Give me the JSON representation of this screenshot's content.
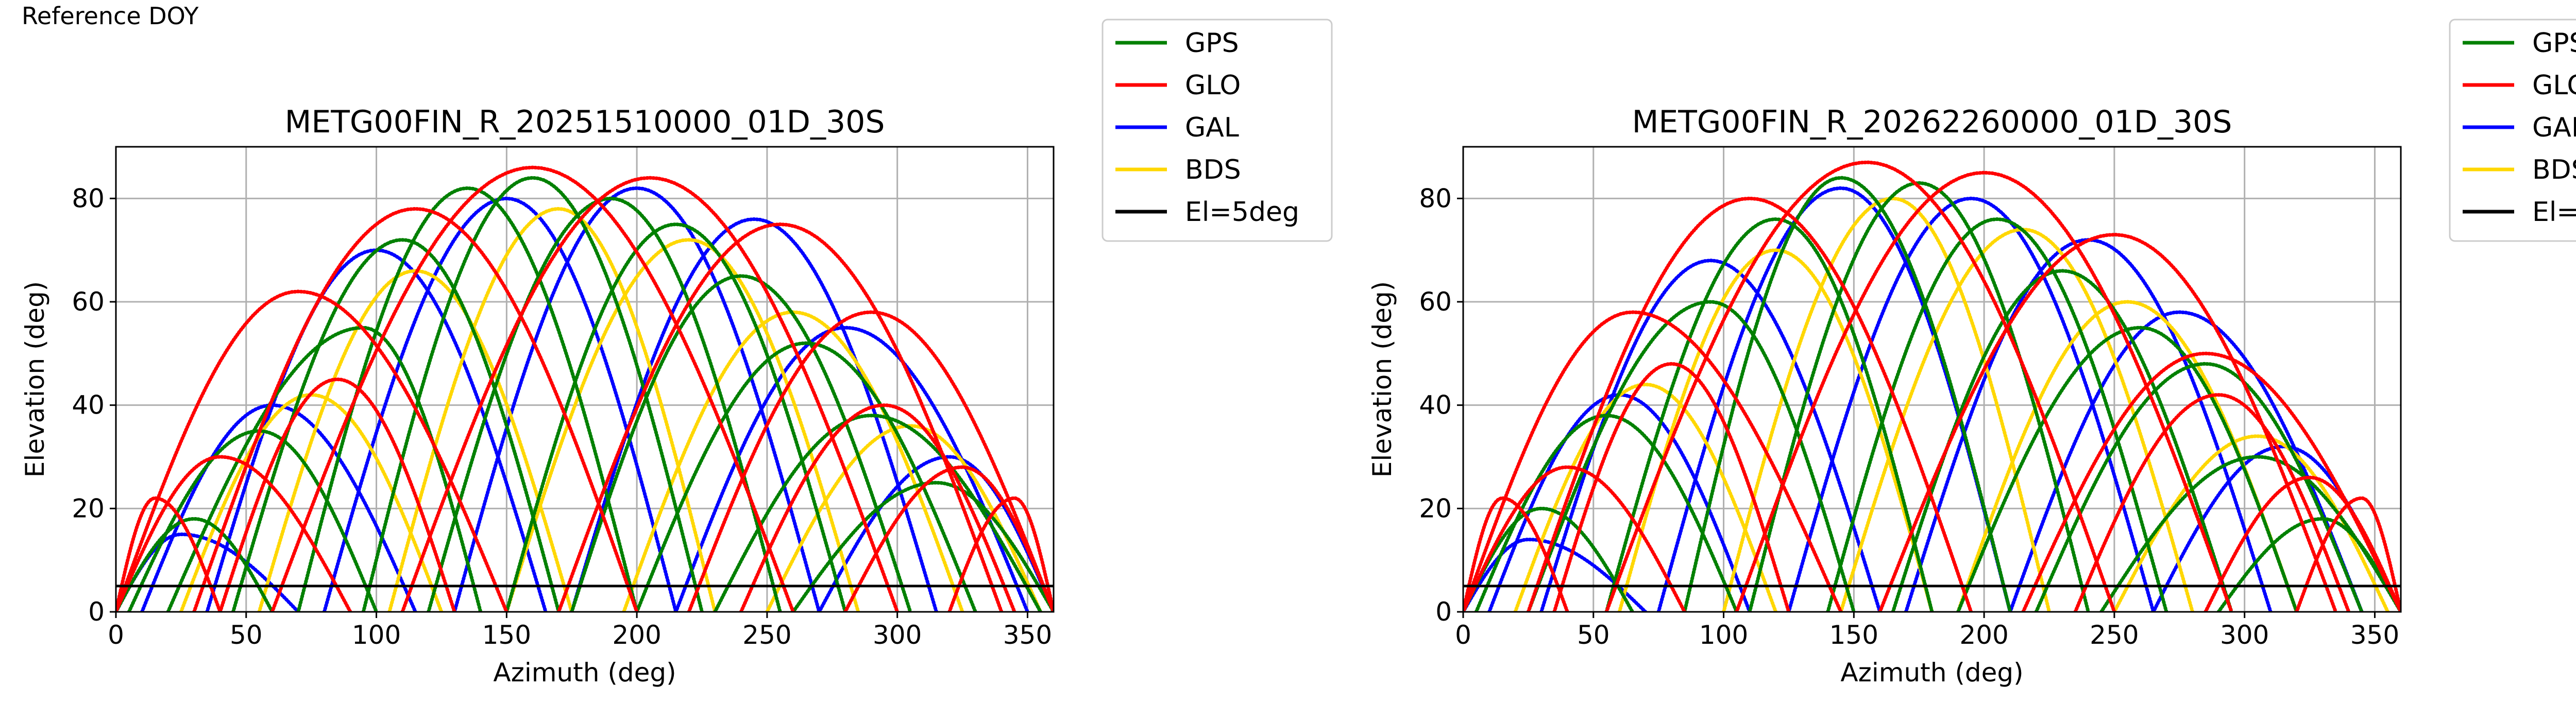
{
  "figure_label": "Reference DOY",
  "legend_items": [
    {
      "label": "GPS",
      "color": "#008000"
    },
    {
      "label": "GLO",
      "color": "#ff0000"
    },
    {
      "label": "GAL",
      "color": "#0000ff"
    },
    {
      "label": "BDS",
      "color": "#ffd700"
    },
    {
      "label": "El=5deg",
      "color": "#000000"
    }
  ],
  "chart_data": [
    {
      "type": "scatter",
      "title": "METG00FIN_R_20251510000_01D_30S",
      "xlabel": "Azimuth (deg)",
      "ylabel": "Elevation (deg)",
      "xlim": [
        0,
        360
      ],
      "ylim": [
        0,
        90
      ],
      "xticks": [
        0,
        50,
        100,
        150,
        200,
        250,
        300,
        350
      ],
      "yticks": [
        0,
        20,
        40,
        60,
        80
      ],
      "grid": true,
      "legend_position": "outside-right",
      "reference_line": {
        "name": "El=5deg",
        "y": 5
      },
      "series": [
        {
          "name": "GPS",
          "color": "#008000",
          "arcs": [
            {
              "az_start": 20,
              "az_end": 140,
              "peak_az": 95,
              "peak_el": 55
            },
            {
              "az_start": 45,
              "az_end": 170,
              "peak_az": 110,
              "peak_el": 72
            },
            {
              "az_start": 70,
              "az_end": 200,
              "peak_az": 135,
              "peak_el": 82
            },
            {
              "az_start": 95,
              "az_end": 225,
              "peak_az": 160,
              "peak_el": 84
            },
            {
              "az_start": 120,
              "az_end": 255,
              "peak_az": 190,
              "peak_el": 80
            },
            {
              "az_start": 150,
              "az_end": 280,
              "peak_az": 215,
              "peak_el": 75
            },
            {
              "az_start": 175,
              "az_end": 305,
              "peak_az": 240,
              "peak_el": 65
            },
            {
              "az_start": 200,
              "az_end": 330,
              "peak_az": 265,
              "peak_el": 52
            },
            {
              "az_start": 230,
              "az_end": 355,
              "peak_az": 290,
              "peak_el": 38
            },
            {
              "az_start": 5,
              "az_end": 100,
              "peak_az": 55,
              "peak_el": 35
            },
            {
              "az_start": 260,
              "az_end": 360,
              "peak_az": 315,
              "peak_el": 25
            },
            {
              "az_start": 0,
              "az_end": 60,
              "peak_az": 30,
              "peak_el": 18
            }
          ]
        },
        {
          "name": "GLO",
          "color": "#ff0000",
          "arcs": [
            {
              "az_start": 0,
              "az_end": 150,
              "peak_az": 70,
              "peak_el": 62
            },
            {
              "az_start": 30,
              "az_end": 200,
              "peak_az": 115,
              "peak_el": 78
            },
            {
              "az_start": 60,
              "az_end": 260,
              "peak_az": 160,
              "peak_el": 86
            },
            {
              "az_start": 110,
              "az_end": 300,
              "peak_az": 205,
              "peak_el": 84
            },
            {
              "az_start": 170,
              "az_end": 340,
              "peak_az": 255,
              "peak_el": 75
            },
            {
              "az_start": 220,
              "az_end": 360,
              "peak_az": 290,
              "peak_el": 58
            },
            {
              "az_start": 0,
              "az_end": 90,
              "peak_az": 40,
              "peak_el": 30
            },
            {
              "az_start": 280,
              "az_end": 360,
              "peak_az": 325,
              "peak_el": 28
            },
            {
              "az_start": 0,
              "az_end": 40,
              "peak_az": 15,
              "peak_el": 22
            },
            {
              "az_start": 320,
              "az_end": 360,
              "peak_az": 345,
              "peak_el": 22
            },
            {
              "az_start": 40,
              "az_end": 130,
              "peak_az": 85,
              "peak_el": 45
            },
            {
              "az_start": 240,
              "az_end": 345,
              "peak_az": 295,
              "peak_el": 40
            }
          ]
        },
        {
          "name": "GAL",
          "color": "#0000ff",
          "arcs": [
            {
              "az_start": 35,
              "az_end": 165,
              "peak_az": 100,
              "peak_el": 70
            },
            {
              "az_start": 80,
              "az_end": 215,
              "peak_az": 150,
              "peak_el": 80
            },
            {
              "az_start": 130,
              "az_end": 270,
              "peak_az": 200,
              "peak_el": 82
            },
            {
              "az_start": 175,
              "az_end": 315,
              "peak_az": 245,
              "peak_el": 76
            },
            {
              "az_start": 215,
              "az_end": 350,
              "peak_az": 280,
              "peak_el": 55
            },
            {
              "az_start": 10,
              "az_end": 115,
              "peak_az": 60,
              "peak_el": 40
            },
            {
              "az_start": 270,
              "az_end": 360,
              "peak_az": 320,
              "peak_el": 30
            },
            {
              "az_start": 0,
              "az_end": 70,
              "peak_az": 25,
              "peak_el": 15
            }
          ]
        },
        {
          "name": "BDS",
          "color": "#ffd700",
          "arcs": [
            {
              "az_start": 55,
              "az_end": 175,
              "peak_az": 115,
              "peak_el": 66
            },
            {
              "az_start": 105,
              "az_end": 230,
              "peak_az": 170,
              "peak_el": 78
            },
            {
              "az_start": 150,
              "az_end": 285,
              "peak_az": 220,
              "peak_el": 72
            },
            {
              "az_start": 195,
              "az_end": 325,
              "peak_az": 260,
              "peak_el": 58
            },
            {
              "az_start": 25,
              "az_end": 125,
              "peak_az": 75,
              "peak_el": 42
            },
            {
              "az_start": 250,
              "az_end": 355,
              "peak_az": 305,
              "peak_el": 36
            }
          ]
        }
      ]
    },
    {
      "type": "scatter",
      "title": "METG00FIN_R_20262260000_01D_30S",
      "xlabel": "Azimuth (deg)",
      "ylabel": "Elevation (deg)",
      "xlim": [
        0,
        360
      ],
      "ylim": [
        0,
        90
      ],
      "xticks": [
        0,
        50,
        100,
        150,
        200,
        250,
        300,
        350
      ],
      "yticks": [
        0,
        20,
        40,
        60,
        80
      ],
      "grid": true,
      "legend_position": "outside-right",
      "reference_line": {
        "name": "El=5deg",
        "y": 5
      },
      "series": [
        {
          "name": "GPS",
          "color": "#008000",
          "arcs": [
            {
              "az_start": 25,
              "az_end": 150,
              "peak_az": 95,
              "peak_el": 60
            },
            {
              "az_start": 55,
              "az_end": 180,
              "peak_az": 120,
              "peak_el": 76
            },
            {
              "az_start": 85,
              "az_end": 210,
              "peak_az": 145,
              "peak_el": 84
            },
            {
              "az_start": 110,
              "az_end": 240,
              "peak_az": 175,
              "peak_el": 83
            },
            {
              "az_start": 140,
              "az_end": 270,
              "peak_az": 205,
              "peak_el": 76
            },
            {
              "az_start": 165,
              "az_end": 295,
              "peak_az": 230,
              "peak_el": 66
            },
            {
              "az_start": 190,
              "az_end": 320,
              "peak_az": 260,
              "peak_el": 55
            },
            {
              "az_start": 220,
              "az_end": 345,
              "peak_az": 285,
              "peak_el": 48
            },
            {
              "az_start": 245,
              "az_end": 360,
              "peak_az": 305,
              "peak_el": 30
            },
            {
              "az_start": 5,
              "az_end": 105,
              "peak_az": 55,
              "peak_el": 38
            },
            {
              "az_start": 0,
              "az_end": 65,
              "peak_az": 30,
              "peak_el": 20
            },
            {
              "az_start": 290,
              "az_end": 360,
              "peak_az": 330,
              "peak_el": 18
            }
          ]
        },
        {
          "name": "GLO",
          "color": "#ff0000",
          "arcs": [
            {
              "az_start": 0,
              "az_end": 145,
              "peak_az": 65,
              "peak_el": 58
            },
            {
              "az_start": 25,
              "az_end": 195,
              "peak_az": 110,
              "peak_el": 80
            },
            {
              "az_start": 55,
              "az_end": 250,
              "peak_az": 155,
              "peak_el": 87
            },
            {
              "az_start": 105,
              "az_end": 295,
              "peak_az": 200,
              "peak_el": 85
            },
            {
              "az_start": 160,
              "az_end": 335,
              "peak_az": 250,
              "peak_el": 73
            },
            {
              "az_start": 215,
              "az_end": 360,
              "peak_az": 285,
              "peak_el": 50
            },
            {
              "az_start": 0,
              "az_end": 85,
              "peak_az": 40,
              "peak_el": 28
            },
            {
              "az_start": 285,
              "az_end": 360,
              "peak_az": 325,
              "peak_el": 26
            },
            {
              "az_start": 0,
              "az_end": 40,
              "peak_az": 15,
              "peak_el": 22
            },
            {
              "az_start": 320,
              "az_end": 360,
              "peak_az": 345,
              "peak_el": 22
            },
            {
              "az_start": 35,
              "az_end": 125,
              "peak_az": 80,
              "peak_el": 48
            },
            {
              "az_start": 235,
              "az_end": 340,
              "peak_az": 290,
              "peak_el": 42
            }
          ]
        },
        {
          "name": "GAL",
          "color": "#0000ff",
          "arcs": [
            {
              "az_start": 30,
              "az_end": 160,
              "peak_az": 95,
              "peak_el": 68
            },
            {
              "az_start": 75,
              "az_end": 210,
              "peak_az": 145,
              "peak_el": 82
            },
            {
              "az_start": 125,
              "az_end": 265,
              "peak_az": 195,
              "peak_el": 80
            },
            {
              "az_start": 170,
              "az_end": 310,
              "peak_az": 240,
              "peak_el": 72
            },
            {
              "az_start": 210,
              "az_end": 345,
              "peak_az": 275,
              "peak_el": 58
            },
            {
              "az_start": 10,
              "az_end": 110,
              "peak_az": 60,
              "peak_el": 42
            },
            {
              "az_start": 265,
              "az_end": 360,
              "peak_az": 315,
              "peak_el": 32
            },
            {
              "az_start": 0,
              "az_end": 70,
              "peak_az": 25,
              "peak_el": 14
            }
          ]
        },
        {
          "name": "BDS",
          "color": "#ffd700",
          "arcs": [
            {
              "az_start": 60,
              "az_end": 180,
              "peak_az": 120,
              "peak_el": 70
            },
            {
              "az_start": 100,
              "az_end": 225,
              "peak_az": 165,
              "peak_el": 80
            },
            {
              "az_start": 145,
              "az_end": 280,
              "peak_az": 215,
              "peak_el": 74
            },
            {
              "az_start": 190,
              "az_end": 320,
              "peak_az": 255,
              "peak_el": 60
            },
            {
              "az_start": 20,
              "az_end": 120,
              "peak_az": 70,
              "peak_el": 44
            },
            {
              "az_start": 250,
              "az_end": 355,
              "peak_az": 305,
              "peak_el": 34
            }
          ]
        }
      ]
    }
  ]
}
